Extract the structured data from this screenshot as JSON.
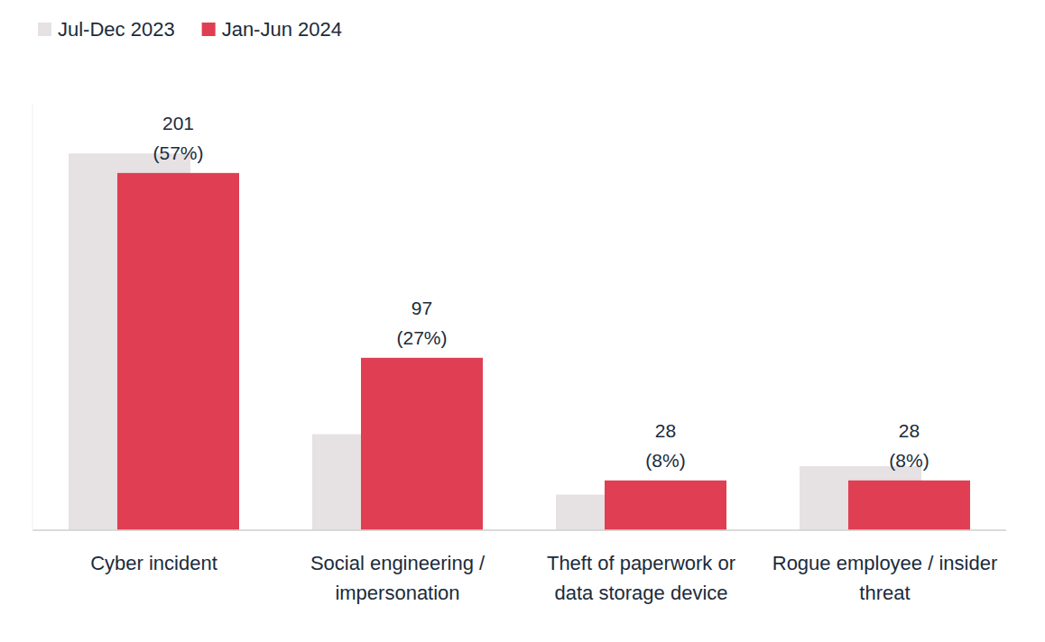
{
  "chart_data": {
    "type": "bar",
    "categories": [
      "Cyber incident",
      "Social engineering / impersonation",
      "Theft of paperwork or data storage device",
      "Rogue employee / insider threat"
    ],
    "series": [
      {
        "name": "Jul-Dec 2023",
        "color": "#e6e1e2",
        "values": [
          212,
          54,
          20,
          36
        ]
      },
      {
        "name": "Jan-Jun 2024",
        "color": "#e03e52",
        "values": [
          201,
          97,
          28,
          28
        ],
        "data_labels": true,
        "value_labels": [
          "201\n(57%)",
          "97\n(27%)",
          "28\n(8%)",
          "28\n(8%)"
        ]
      }
    ],
    "ylim": [
      0,
      240
    ],
    "tick_labels": false,
    "grid": false,
    "legend": "top-left"
  }
}
